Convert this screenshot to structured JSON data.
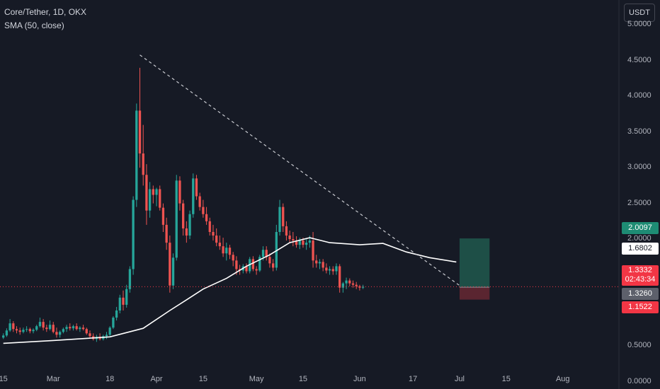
{
  "header": {
    "title": "Core/Tether, 1D, OKX",
    "indicator": "SMA (50, close)",
    "unit_button": "USDT"
  },
  "colors": {
    "background": "#161a25",
    "up": "#26a69a",
    "down": "#ef5350",
    "sma": "#ffffff",
    "trendline": "#c9cbd1",
    "target_zone": "#1e4f47",
    "stop_zone": "#5a2530",
    "last_price_line": "#f23645"
  },
  "badges": {
    "target": "2.0097",
    "sma": "1.6802",
    "last_price": "1.3332",
    "countdown": "02:43:34",
    "entry": "1.3260",
    "stop": "1.1522"
  },
  "chart_data": {
    "type": "candlestick",
    "title": "Core/Tether, 1D, OKX",
    "y_axis": {
      "unit": "USDT",
      "ylim": [
        -0.1,
        5.35
      ],
      "ticks": [
        "0.0000",
        "0.5000",
        "1.0000",
        "1.5000",
        "2.0000",
        "2.5000",
        "3.0000",
        "3.5000",
        "4.0000",
        "4.5000",
        "5.0000"
      ]
    },
    "x_axis": {
      "xlim": [
        "2024-02-14",
        "2024-08-17"
      ],
      "ticks": [
        {
          "date": "2024-02-15",
          "label": "15"
        },
        {
          "date": "2024-03-01",
          "label": "Mar"
        },
        {
          "date": "2024-03-18",
          "label": "18"
        },
        {
          "date": "2024-04-01",
          "label": "Apr"
        },
        {
          "date": "2024-04-15",
          "label": "15"
        },
        {
          "date": "2024-05-01",
          "label": "May"
        },
        {
          "date": "2024-05-15",
          "label": "15"
        },
        {
          "date": "2024-06-01",
          "label": "Jun"
        },
        {
          "date": "2024-06-17",
          "label": "17"
        },
        {
          "date": "2024-07-01",
          "label": "Jul"
        },
        {
          "date": "2024-07-15",
          "label": "15"
        },
        {
          "date": "2024-08-01",
          "label": "Aug"
        }
      ]
    },
    "grid": false,
    "series": [
      {
        "name": "Core/Tether",
        "type": "candlestick",
        "start_date": "2024-02-15",
        "ohlc": [
          [
            0.62,
            0.68,
            0.6,
            0.65
          ],
          [
            0.65,
            0.75,
            0.63,
            0.72
          ],
          [
            0.72,
            0.88,
            0.7,
            0.82
          ],
          [
            0.82,
            0.85,
            0.7,
            0.74
          ],
          [
            0.74,
            0.78,
            0.68,
            0.72
          ],
          [
            0.72,
            0.76,
            0.66,
            0.7
          ],
          [
            0.7,
            0.76,
            0.68,
            0.73
          ],
          [
            0.73,
            0.78,
            0.7,
            0.74
          ],
          [
            0.74,
            0.76,
            0.68,
            0.71
          ],
          [
            0.71,
            0.75,
            0.68,
            0.73
          ],
          [
            0.73,
            0.8,
            0.71,
            0.78
          ],
          [
            0.78,
            0.9,
            0.76,
            0.84
          ],
          [
            0.84,
            0.88,
            0.72,
            0.76
          ],
          [
            0.76,
            0.8,
            0.7,
            0.74
          ],
          [
            0.74,
            0.86,
            0.72,
            0.8
          ],
          [
            0.8,
            0.84,
            0.68,
            0.7
          ],
          [
            0.7,
            0.76,
            0.62,
            0.66
          ],
          [
            0.66,
            0.72,
            0.62,
            0.7
          ],
          [
            0.7,
            0.76,
            0.68,
            0.74
          ],
          [
            0.74,
            0.8,
            0.7,
            0.77
          ],
          [
            0.77,
            0.82,
            0.72,
            0.75
          ],
          [
            0.75,
            0.8,
            0.72,
            0.78
          ],
          [
            0.78,
            0.82,
            0.72,
            0.74
          ],
          [
            0.74,
            0.78,
            0.7,
            0.76
          ],
          [
            0.76,
            0.8,
            0.72,
            0.74
          ],
          [
            0.74,
            0.76,
            0.66,
            0.68
          ],
          [
            0.68,
            0.72,
            0.62,
            0.64
          ],
          [
            0.64,
            0.68,
            0.58,
            0.6
          ],
          [
            0.6,
            0.66,
            0.56,
            0.63
          ],
          [
            0.63,
            0.68,
            0.58,
            0.6
          ],
          [
            0.6,
            0.66,
            0.58,
            0.64
          ],
          [
            0.64,
            0.7,
            0.6,
            0.66
          ],
          [
            0.66,
            0.78,
            0.64,
            0.76
          ],
          [
            0.76,
            0.92,
            0.74,
            0.9
          ],
          [
            0.9,
            1.05,
            0.86,
            1.0
          ],
          [
            1.0,
            1.22,
            0.96,
            1.18
          ],
          [
            1.18,
            1.28,
            1.0,
            1.08
          ],
          [
            1.08,
            1.36,
            1.04,
            1.3
          ],
          [
            1.3,
            1.62,
            1.25,
            1.58
          ],
          [
            1.58,
            2.6,
            1.5,
            2.55
          ],
          [
            2.55,
            3.9,
            2.45,
            3.8
          ],
          [
            3.8,
            4.4,
            3.0,
            3.2
          ],
          [
            3.2,
            3.6,
            2.75,
            2.9
          ],
          [
            2.9,
            3.05,
            2.2,
            2.4
          ],
          [
            2.4,
            2.8,
            2.3,
            2.7
          ],
          [
            2.7,
            2.75,
            2.5,
            2.62
          ],
          [
            2.62,
            2.72,
            2.46,
            2.7
          ],
          [
            2.7,
            2.75,
            2.4,
            2.44
          ],
          [
            2.44,
            2.5,
            2.1,
            2.2
          ],
          [
            2.2,
            2.3,
            1.85,
            1.95
          ],
          [
            1.95,
            2.05,
            1.25,
            1.35
          ],
          [
            1.35,
            1.8,
            1.3,
            1.74
          ],
          [
            1.74,
            2.9,
            1.7,
            2.82
          ],
          [
            2.82,
            2.88,
            2.4,
            2.5
          ],
          [
            2.5,
            2.55,
            2.05,
            2.15
          ],
          [
            2.15,
            2.25,
            1.95,
            2.05
          ],
          [
            2.05,
            2.4,
            2.0,
            2.35
          ],
          [
            2.35,
            2.92,
            2.3,
            2.85
          ],
          [
            2.85,
            2.9,
            2.55,
            2.6
          ],
          [
            2.6,
            2.65,
            2.4,
            2.45
          ],
          [
            2.45,
            2.55,
            2.3,
            2.35
          ],
          [
            2.35,
            2.45,
            2.2,
            2.25
          ],
          [
            2.25,
            2.3,
            2.05,
            2.1
          ],
          [
            2.1,
            2.2,
            1.98,
            2.05
          ],
          [
            2.05,
            2.15,
            1.9,
            1.95
          ],
          [
            1.95,
            2.05,
            1.85,
            1.9
          ],
          [
            1.9,
            2.02,
            1.75,
            1.8
          ],
          [
            1.8,
            1.95,
            1.7,
            1.88
          ],
          [
            1.88,
            1.92,
            1.72,
            1.78
          ],
          [
            1.78,
            1.82,
            1.62,
            1.7
          ],
          [
            1.7,
            1.76,
            1.5,
            1.58
          ],
          [
            1.58,
            1.64,
            1.5,
            1.56
          ],
          [
            1.56,
            1.65,
            1.52,
            1.62
          ],
          [
            1.62,
            1.66,
            1.52,
            1.55
          ],
          [
            1.55,
            1.75,
            1.52,
            1.72
          ],
          [
            1.72,
            1.76,
            1.55,
            1.58
          ],
          [
            1.58,
            1.62,
            1.5,
            1.56
          ],
          [
            1.56,
            1.78,
            1.54,
            1.75
          ],
          [
            1.75,
            1.9,
            1.7,
            1.85
          ],
          [
            1.85,
            1.9,
            1.7,
            1.75
          ],
          [
            1.75,
            1.8,
            1.6,
            1.66
          ],
          [
            1.66,
            1.72,
            1.55,
            1.6
          ],
          [
            1.6,
            2.2,
            1.56,
            2.1
          ],
          [
            2.1,
            2.55,
            2.05,
            2.45
          ],
          [
            2.45,
            2.5,
            2.1,
            2.18
          ],
          [
            2.18,
            2.25,
            1.98,
            2.05
          ],
          [
            2.05,
            2.12,
            1.95,
            2.0
          ],
          [
            2.0,
            2.1,
            1.9,
            1.98
          ],
          [
            1.98,
            2.04,
            1.88,
            1.92
          ],
          [
            1.92,
            2.02,
            1.86,
            1.98
          ],
          [
            1.98,
            2.02,
            1.88,
            1.92
          ],
          [
            1.92,
            2.0,
            1.85,
            1.95
          ],
          [
            1.95,
            2.05,
            1.88,
            1.98
          ],
          [
            1.98,
            2.1,
            1.6,
            1.7
          ],
          [
            1.7,
            1.78,
            1.6,
            1.66
          ],
          [
            1.66,
            1.72,
            1.58,
            1.68
          ],
          [
            1.68,
            1.72,
            1.55,
            1.6
          ],
          [
            1.6,
            1.66,
            1.52,
            1.56
          ],
          [
            1.56,
            1.62,
            1.5,
            1.58
          ],
          [
            1.58,
            1.62,
            1.5,
            1.55
          ],
          [
            1.55,
            1.66,
            1.5,
            1.62
          ],
          [
            1.62,
            1.65,
            1.25,
            1.32
          ],
          [
            1.32,
            1.4,
            1.25,
            1.38
          ],
          [
            1.38,
            1.46,
            1.3,
            1.42
          ],
          [
            1.42,
            1.45,
            1.34,
            1.38
          ],
          [
            1.38,
            1.42,
            1.32,
            1.36
          ],
          [
            1.36,
            1.4,
            1.3,
            1.34
          ],
          [
            1.34,
            1.36,
            1.28,
            1.32
          ],
          [
            1.32,
            1.36,
            1.3,
            1.3332
          ]
        ]
      },
      {
        "name": "SMA (50, close)",
        "type": "line",
        "points": [
          [
            "2024-02-15",
            0.54
          ],
          [
            "2024-03-01",
            0.58
          ],
          [
            "2024-03-18",
            0.63
          ],
          [
            "2024-03-28",
            0.75
          ],
          [
            "2024-04-05",
            1.0
          ],
          [
            "2024-04-10",
            1.15
          ],
          [
            "2024-04-15",
            1.3
          ],
          [
            "2024-04-22",
            1.45
          ],
          [
            "2024-04-28",
            1.62
          ],
          [
            "2024-05-05",
            1.78
          ],
          [
            "2024-05-11",
            1.95
          ],
          [
            "2024-05-17",
            2.02
          ],
          [
            "2024-05-23",
            1.95
          ],
          [
            "2024-06-01",
            1.92
          ],
          [
            "2024-06-08",
            1.94
          ],
          [
            "2024-06-15",
            1.82
          ],
          [
            "2024-06-22",
            1.74
          ],
          [
            "2024-06-30",
            1.68
          ]
        ]
      }
    ],
    "annotations": {
      "trendline": {
        "from": [
          "2024-03-27",
          4.58
        ],
        "to": [
          "2024-07-01",
          1.35
        ]
      },
      "position": {
        "entry": 1.326,
        "target": 2.0097,
        "stop": 1.1522,
        "start": "2024-07-01",
        "end": "2024-07-10"
      },
      "last_price": 1.3332
    }
  }
}
